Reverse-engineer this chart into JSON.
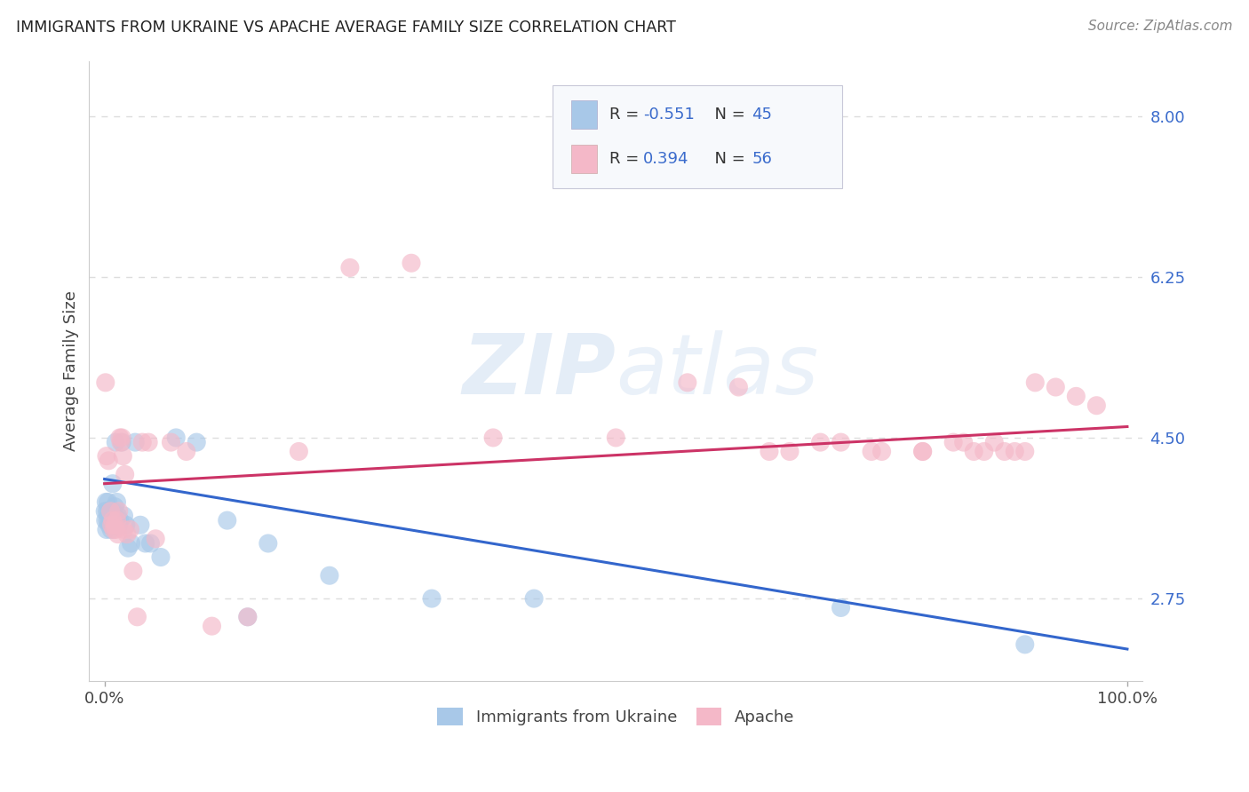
{
  "title": "IMMIGRANTS FROM UKRAINE VS APACHE AVERAGE FAMILY SIZE CORRELATION CHART",
  "source": "Source: ZipAtlas.com",
  "ylabel": "Average Family Size",
  "right_yticks": [
    2.75,
    4.5,
    6.25,
    8.0
  ],
  "watermark_zip": "ZIP",
  "watermark_atlas": "atlas",
  "blue_color": "#a8c8e8",
  "blue_line_color": "#3366cc",
  "pink_color": "#f4b8c8",
  "pink_line_color": "#cc3366",
  "ukraine_label": "Immigrants from Ukraine",
  "apache_label": "Apache",
  "ukraine_points_x": [
    0.05,
    0.1,
    0.15,
    0.2,
    0.25,
    0.3,
    0.35,
    0.4,
    0.45,
    0.5,
    0.55,
    0.6,
    0.65,
    0.7,
    0.75,
    0.8,
    0.85,
    0.9,
    0.95,
    1.0,
    1.1,
    1.2,
    1.3,
    1.4,
    1.5,
    1.7,
    1.9,
    2.1,
    2.3,
    2.6,
    3.0,
    3.5,
    4.0,
    4.5,
    5.5,
    7.0,
    9.0,
    12.0,
    14.0,
    16.0,
    22.0,
    32.0,
    42.0,
    72.0,
    90.0
  ],
  "ukraine_points_y": [
    3.7,
    3.6,
    3.8,
    3.5,
    3.7,
    3.6,
    3.8,
    3.7,
    3.55,
    3.6,
    3.65,
    3.7,
    3.5,
    3.65,
    3.6,
    4.0,
    3.7,
    3.55,
    3.6,
    3.75,
    4.45,
    3.8,
    3.65,
    3.55,
    3.6,
    4.45,
    3.65,
    3.55,
    3.3,
    3.35,
    4.45,
    3.55,
    3.35,
    3.35,
    3.2,
    4.5,
    4.45,
    3.6,
    2.55,
    3.35,
    3.0,
    2.75,
    2.75,
    2.65,
    2.25
  ],
  "apache_points_x": [
    0.1,
    0.2,
    0.4,
    0.6,
    0.7,
    0.8,
    0.9,
    1.0,
    1.1,
    1.2,
    1.3,
    1.4,
    1.5,
    1.6,
    1.7,
    1.8,
    1.9,
    2.0,
    2.2,
    2.5,
    2.8,
    3.2,
    3.7,
    4.3,
    5.0,
    6.5,
    8.0,
    10.5,
    14.0,
    19.0,
    24.0,
    30.0,
    38.0,
    50.0,
    57.0,
    62.0,
    67.0,
    72.0,
    76.0,
    80.0,
    83.0,
    85.0,
    87.0,
    89.0,
    91.0,
    93.0,
    95.0,
    97.0,
    65.0,
    70.0,
    75.0,
    80.0,
    84.0,
    86.0,
    88.0,
    90.0
  ],
  "apache_points_y": [
    5.1,
    4.3,
    4.25,
    3.7,
    3.55,
    3.6,
    3.5,
    3.55,
    3.5,
    3.6,
    3.45,
    3.7,
    4.5,
    4.45,
    4.5,
    4.3,
    3.5,
    4.1,
    3.45,
    3.5,
    3.05,
    2.55,
    4.45,
    4.45,
    3.4,
    4.45,
    4.35,
    2.45,
    2.55,
    4.35,
    6.35,
    6.4,
    4.5,
    4.5,
    5.1,
    5.05,
    4.35,
    4.45,
    4.35,
    4.35,
    4.45,
    4.35,
    4.45,
    4.35,
    5.1,
    5.05,
    4.95,
    4.85,
    4.35,
    4.45,
    4.35,
    4.35,
    4.45,
    4.35,
    4.35,
    4.35
  ],
  "ukraine_trend_x": [
    0,
    100
  ],
  "ukraine_trend_y_start": 4.05,
  "ukraine_trend_y_end": 2.2,
  "apache_trend_x": [
    0,
    100
  ],
  "apache_trend_y_start": 4.0,
  "apache_trend_y_end": 4.62,
  "ylim_bottom": 1.85,
  "ylim_top": 8.6,
  "xlim_left": -1.5,
  "xlim_right": 101.5,
  "background_color": "#ffffff",
  "grid_color": "#dddddd",
  "r1_val": "-0.551",
  "n1_val": "45",
  "r2_val": "0.394",
  "n2_val": "56",
  "title_fontsize": 12.5,
  "axis_fontsize": 13,
  "right_tick_color": "#3a6bcc"
}
